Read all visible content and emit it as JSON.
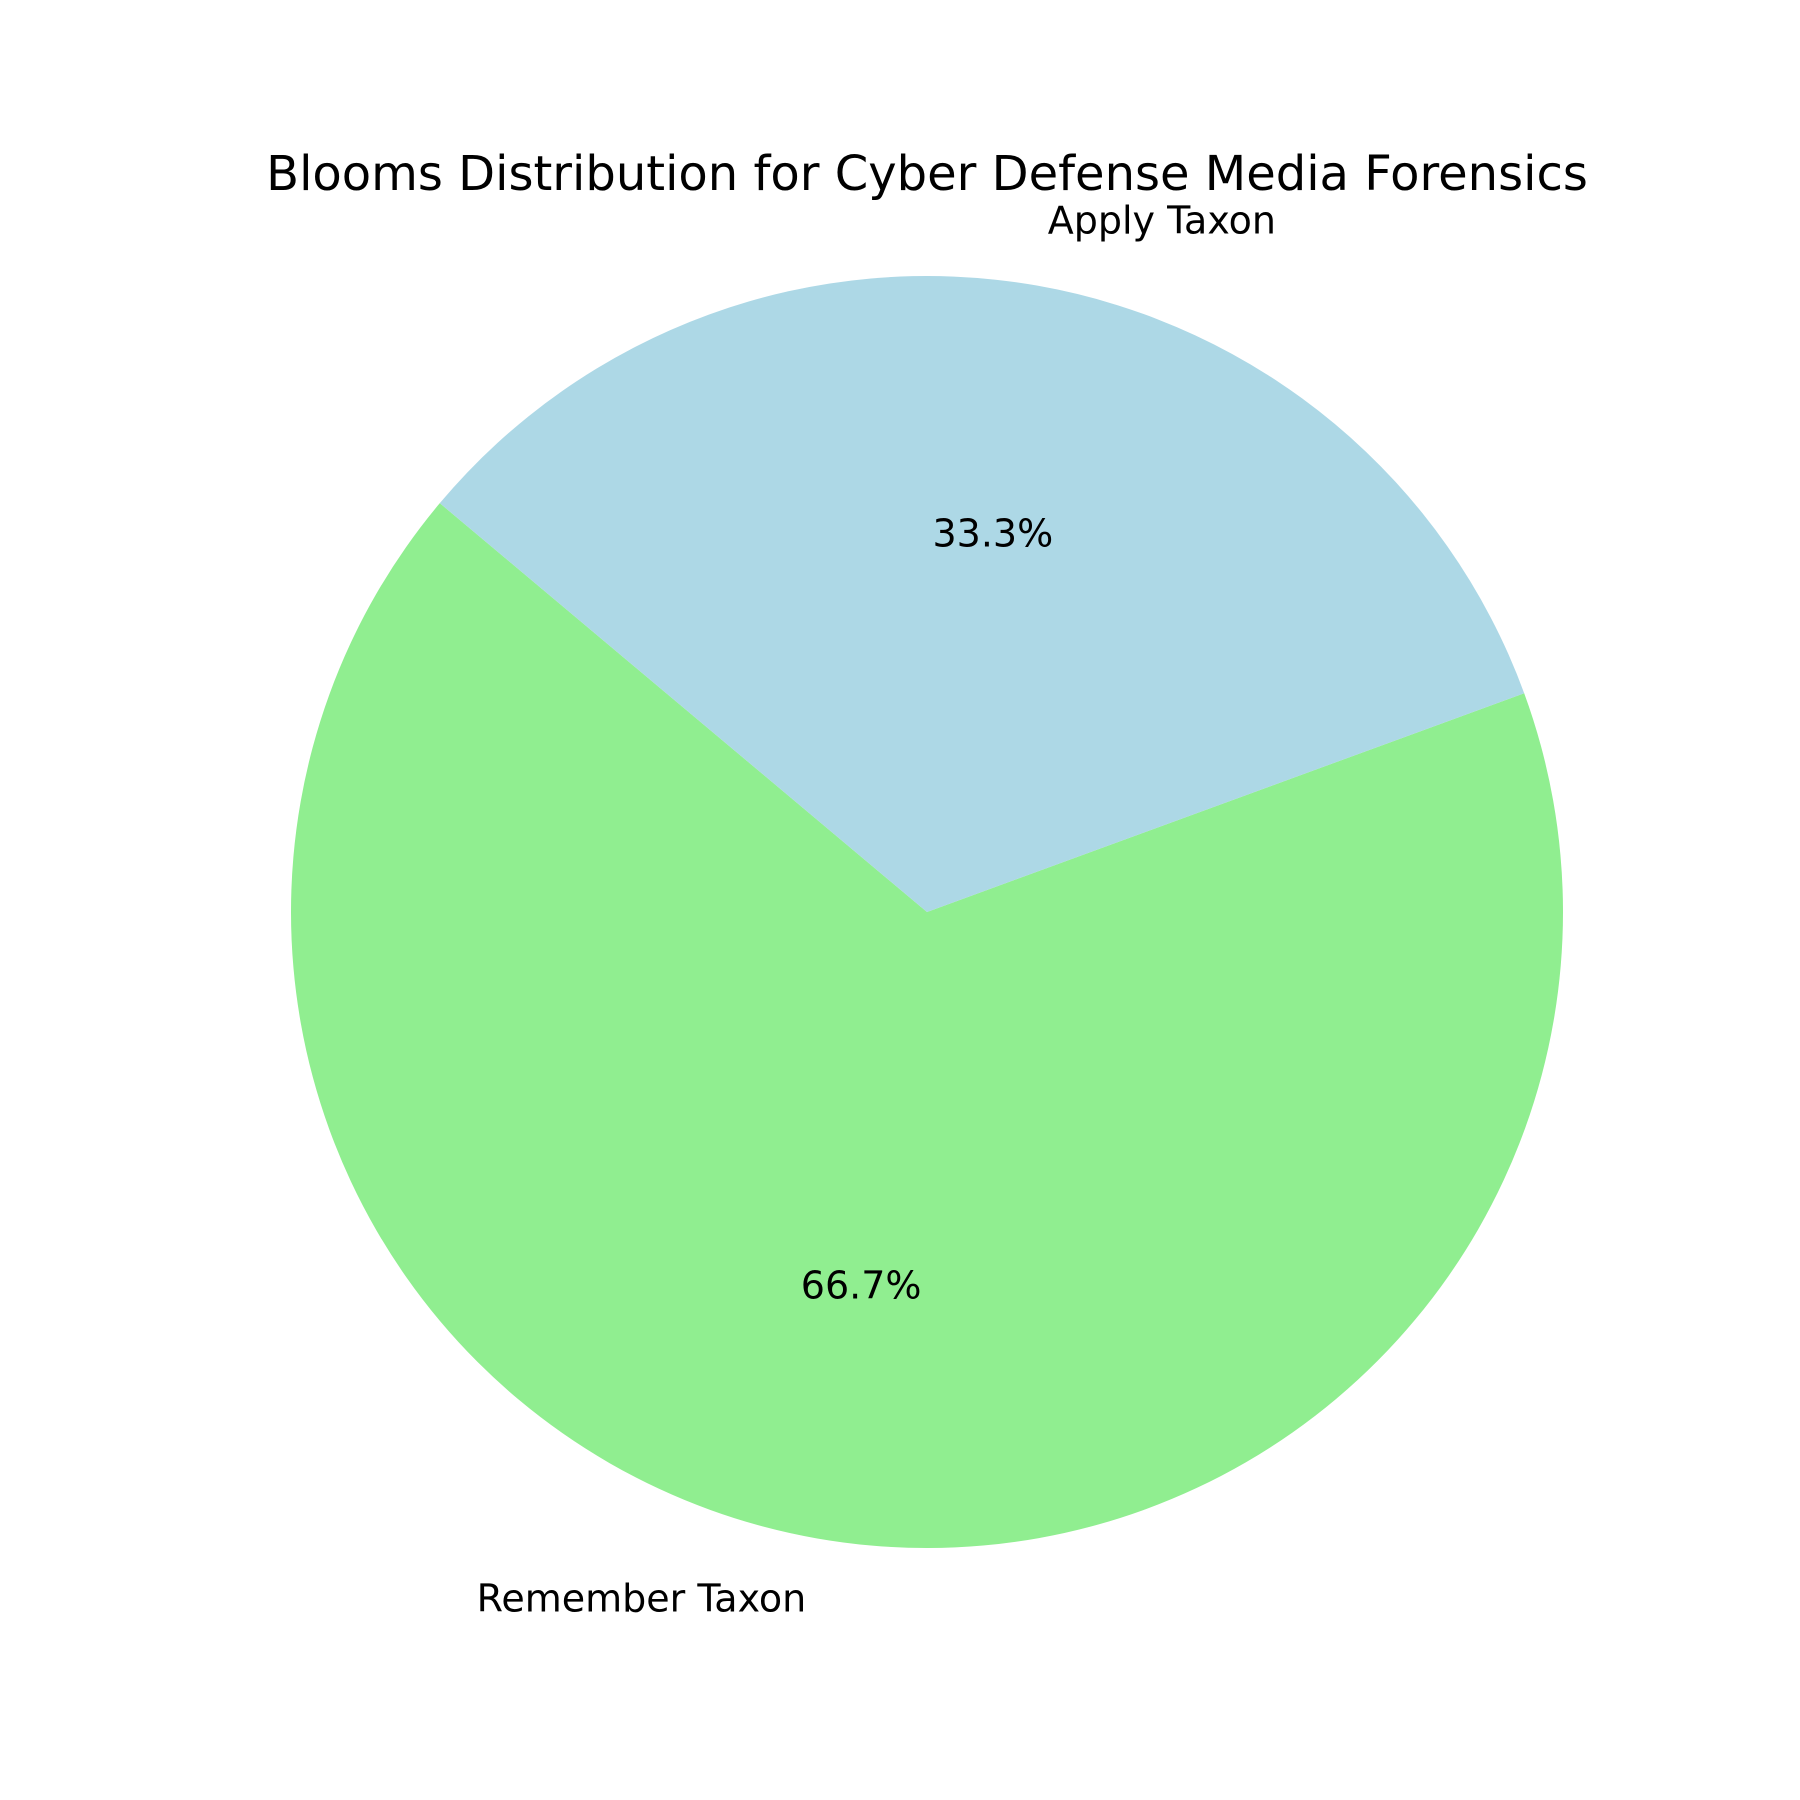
{
  "chart_data": {
    "type": "pie",
    "title": "Blooms Distribution for Cyber Defense Media Forensics",
    "start_angle_deg": 140,
    "counterclockwise": true,
    "slices": [
      {
        "label": "Remember Taxon",
        "value": 66.7,
        "pct_label": "66.7%",
        "color": "#90ee90"
      },
      {
        "label": "Apply Taxon",
        "value": 33.3,
        "pct_label": "33.3%",
        "color": "#add8e6"
      }
    ]
  }
}
